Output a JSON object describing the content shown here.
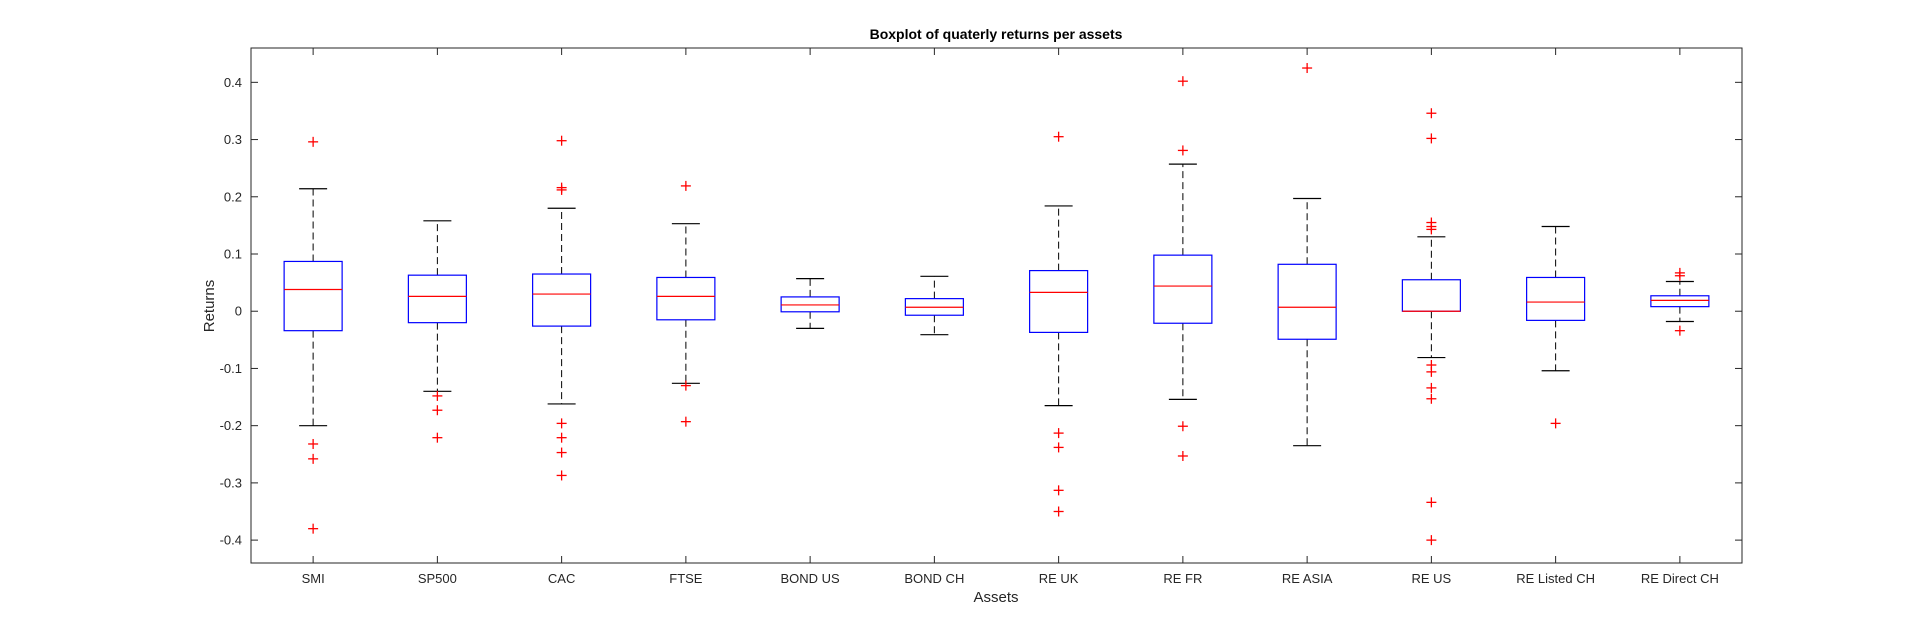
{
  "chart_data": {
    "type": "boxplot",
    "title": "Boxplot of quaterly returns per assets",
    "xlabel": "Assets",
    "ylabel": "Returns",
    "ylim": [
      -0.44,
      0.46
    ],
    "yticks": [
      -0.4,
      -0.3,
      -0.2,
      -0.1,
      0,
      0.1,
      0.2,
      0.3,
      0.4
    ],
    "ytick_labels": [
      "-0.4",
      "-0.3",
      "-0.2",
      "-0.1",
      "0",
      "0.1",
      "0.2",
      "0.3",
      "0.4"
    ],
    "grid": false,
    "colors": {
      "box": "#0000ff",
      "median": "#ff0000",
      "whisker": "#000000",
      "outlier": "#ff0000"
    },
    "categories": [
      "SMI",
      "SP500",
      "CAC",
      "FTSE",
      "BOND US",
      "BOND CH",
      "RE UK",
      "RE FR",
      "RE ASIA",
      "RE US",
      "RE Listed CH",
      "RE Direct CH"
    ],
    "boxes": [
      {
        "q1": -0.034,
        "median": 0.038,
        "q3": 0.087,
        "whisker_low": -0.2,
        "whisker_high": 0.214,
        "outliers": [
          0.296,
          -0.232,
          -0.258,
          -0.38
        ]
      },
      {
        "q1": -0.02,
        "median": 0.026,
        "q3": 0.063,
        "whisker_low": -0.14,
        "whisker_high": 0.158,
        "outliers": [
          -0.148,
          -0.173,
          -0.221
        ]
      },
      {
        "q1": -0.026,
        "median": 0.03,
        "q3": 0.065,
        "whisker_low": -0.162,
        "whisker_high": 0.18,
        "outliers": [
          0.298,
          0.216,
          0.212,
          -0.196,
          -0.221,
          -0.247,
          -0.287
        ]
      },
      {
        "q1": -0.015,
        "median": 0.026,
        "q3": 0.059,
        "whisker_low": -0.126,
        "whisker_high": 0.153,
        "outliers": [
          0.219,
          -0.13,
          -0.193
        ]
      },
      {
        "q1": -0.001,
        "median": 0.011,
        "q3": 0.025,
        "whisker_low": -0.03,
        "whisker_high": 0.057,
        "outliers": []
      },
      {
        "q1": -0.007,
        "median": 0.007,
        "q3": 0.022,
        "whisker_low": -0.041,
        "whisker_high": 0.061,
        "outliers": []
      },
      {
        "q1": -0.037,
        "median": 0.033,
        "q3": 0.071,
        "whisker_low": -0.165,
        "whisker_high": 0.184,
        "outliers": [
          0.305,
          -0.213,
          -0.238,
          -0.313,
          -0.35
        ]
      },
      {
        "q1": -0.021,
        "median": 0.044,
        "q3": 0.098,
        "whisker_low": -0.154,
        "whisker_high": 0.257,
        "outliers": [
          0.402,
          0.281,
          -0.201,
          -0.253
        ]
      },
      {
        "q1": -0.049,
        "median": 0.007,
        "q3": 0.082,
        "whisker_low": -0.235,
        "whisker_high": 0.197,
        "outliers": [
          0.425
        ]
      },
      {
        "q1": 0.0,
        "median": 0.0,
        "q3": 0.055,
        "whisker_low": -0.081,
        "whisker_high": 0.13,
        "outliers": [
          0.346,
          0.302,
          0.155,
          0.148,
          0.143,
          -0.094,
          -0.106,
          -0.134,
          -0.153,
          -0.334,
          -0.4
        ]
      },
      {
        "q1": -0.016,
        "median": 0.016,
        "q3": 0.059,
        "whisker_low": -0.104,
        "whisker_high": 0.148,
        "outliers": [
          -0.196
        ]
      },
      {
        "q1": 0.008,
        "median": 0.019,
        "q3": 0.027,
        "whisker_low": -0.018,
        "whisker_high": 0.052,
        "outliers": [
          0.067,
          0.062,
          -0.034
        ]
      }
    ]
  }
}
